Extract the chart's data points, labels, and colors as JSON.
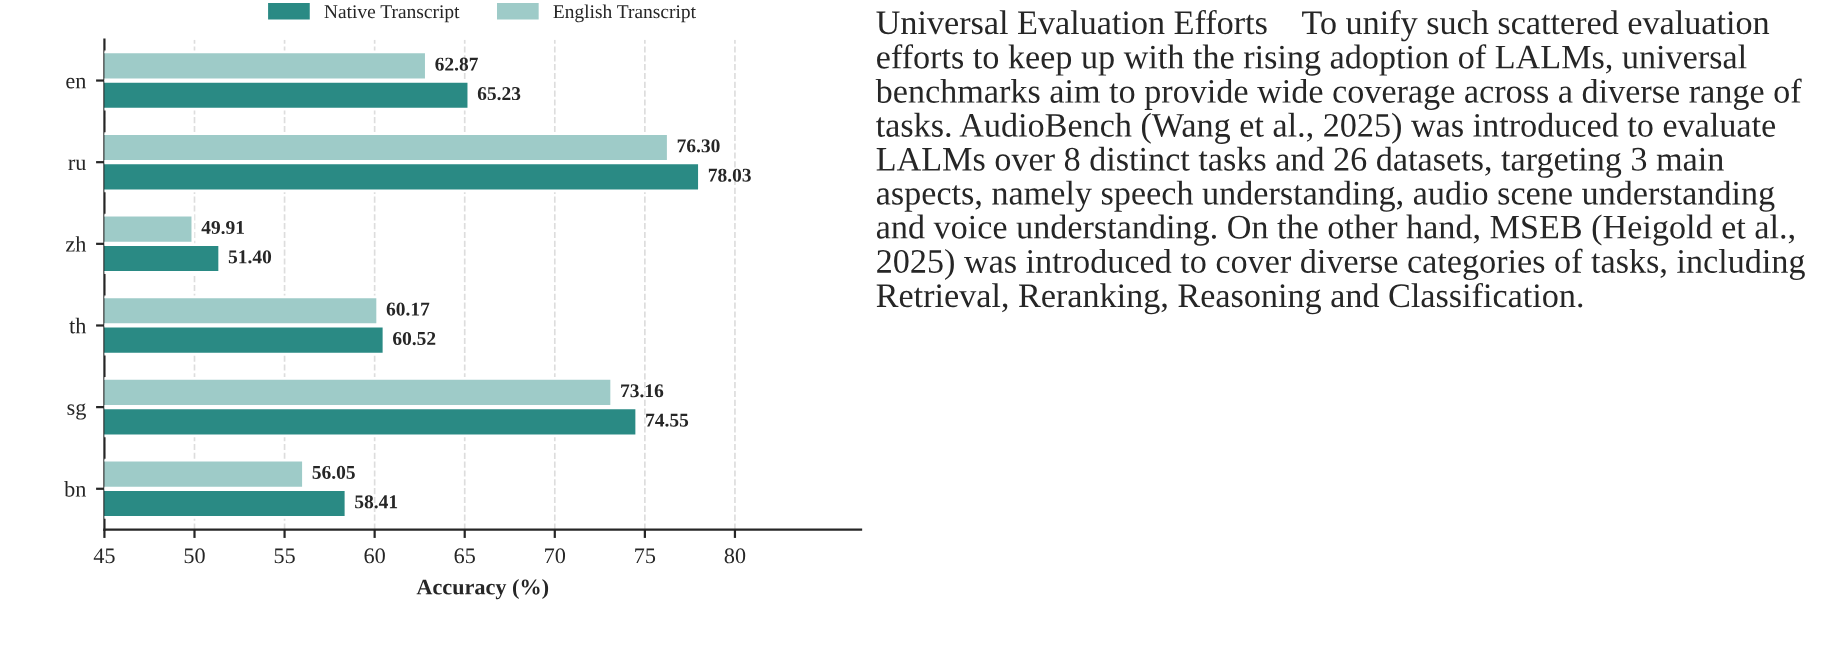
{
  "chart_data": {
    "type": "bar",
    "orientation": "horizontal",
    "xlabel": "Accuracy (%)",
    "categories": [
      "en",
      "ru",
      "zh",
      "th",
      "sg",
      "bn"
    ],
    "series": [
      {
        "name": "Native Transcript",
        "color": "#2a8a84",
        "values": [
          65.23,
          78.03,
          51.4,
          60.52,
          74.55,
          58.41
        ],
        "value_labels": [
          "65.23",
          "78.03",
          "51.40",
          "60.52",
          "74.55",
          "58.41"
        ]
      },
      {
        "name": "English Transcript",
        "color": "#9ecbc8",
        "values": [
          62.87,
          76.3,
          49.91,
          60.17,
          73.16,
          56.05
        ],
        "value_labels": [
          "62.87",
          "76.30",
          "49.91",
          "60.17",
          "73.16",
          "56.05"
        ]
      }
    ],
    "xlim": [
      45,
      87
    ],
    "xticks": [
      45,
      50,
      55,
      60,
      65,
      70,
      75,
      80
    ],
    "grid": "x",
    "legend": "top",
    "annotations": [
      "Universal Evaluation Efforts    To unify such scattered evaluation efforts to keep up with the rising adoption of LALMs, universal benchmarks aim to provide wide coverage across a diverse range of tasks. AudioBench (Wang et al., 2025) was introduced to evaluate LALMs over 8 distinct tasks and 26 datasets, targeting 3 main aspects, namely speech understanding, audio scene understanding and voice understanding. On the other hand, MSEB (Heigold et al., 2025) was introduced to cover diverse categories of tasks, including Retrieval, Reranking, Reasoning and Classification."
    ]
  }
}
